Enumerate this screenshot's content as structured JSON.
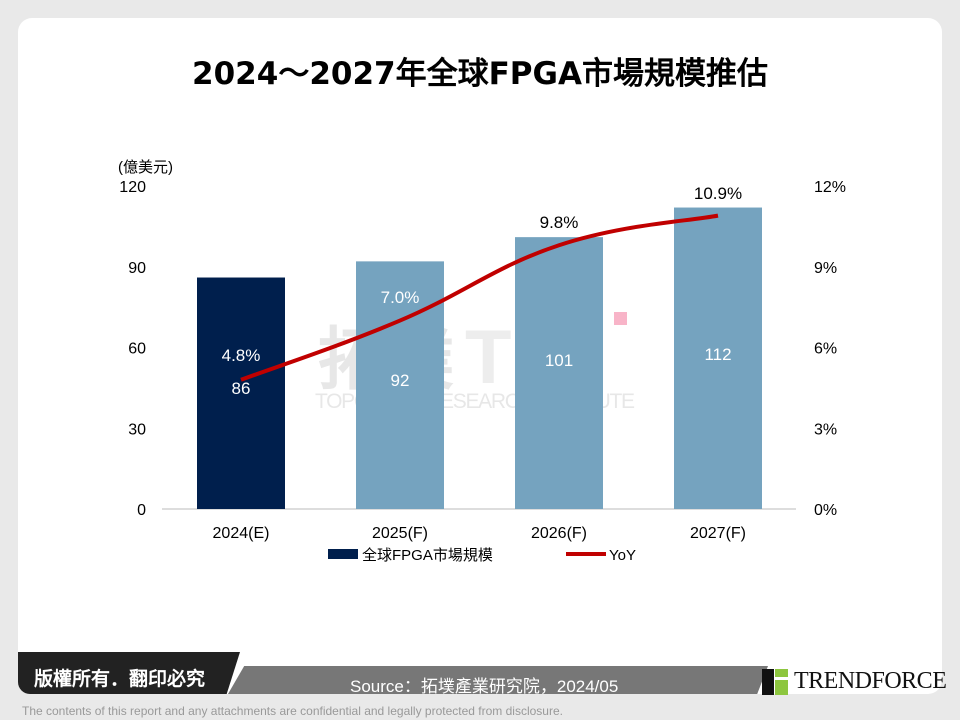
{
  "title": "2024～2027年全球FPGA市場規模推估",
  "chart_data": {
    "type": "bar+line",
    "title": "2024～2027年全球FPGA市場規模推估",
    "categories": [
      "2024(E)",
      "2025(F)",
      "2026(F)",
      "2027(F)"
    ],
    "ylabel": "(億美元)",
    "ylim": [
      0,
      120
    ],
    "yticks": [
      "0",
      "30",
      "60",
      "90",
      "120"
    ],
    "y2lim": [
      0,
      12
    ],
    "y2ticks": [
      "0%",
      "3%",
      "6%",
      "9%",
      "12%"
    ],
    "series": [
      {
        "name": "全球FPGA市場規模",
        "type": "bar",
        "values": [
          86,
          92,
          101,
          112
        ],
        "labels": [
          "86",
          "92",
          "101",
          "112"
        ],
        "colors": [
          "#001f4d",
          "#75a3bf",
          "#75a3bf",
          "#75a3bf"
        ]
      },
      {
        "name": "YoY",
        "type": "line",
        "axis": "right",
        "values": [
          4.8,
          7.0,
          9.8,
          10.9
        ],
        "labels": [
          "4.8%",
          "7.0%",
          "9.8%",
          "10.9%"
        ],
        "color": "#c00000"
      }
    ],
    "legend": "bottom",
    "grid": false
  },
  "watermark": {
    "cn": "拓墣",
    "en": "TOPOLOGY RESEARCH INSTITUTE",
    "logo": "TRI"
  },
  "footer": {
    "copyright": "版權所有．翻印必究",
    "source": "Source：拓墣產業研究院，2024/05",
    "brand": "TRENDFORCE",
    "disclaimer": "The contents of this report and any attachments are confidential and legally protected from disclosure."
  }
}
